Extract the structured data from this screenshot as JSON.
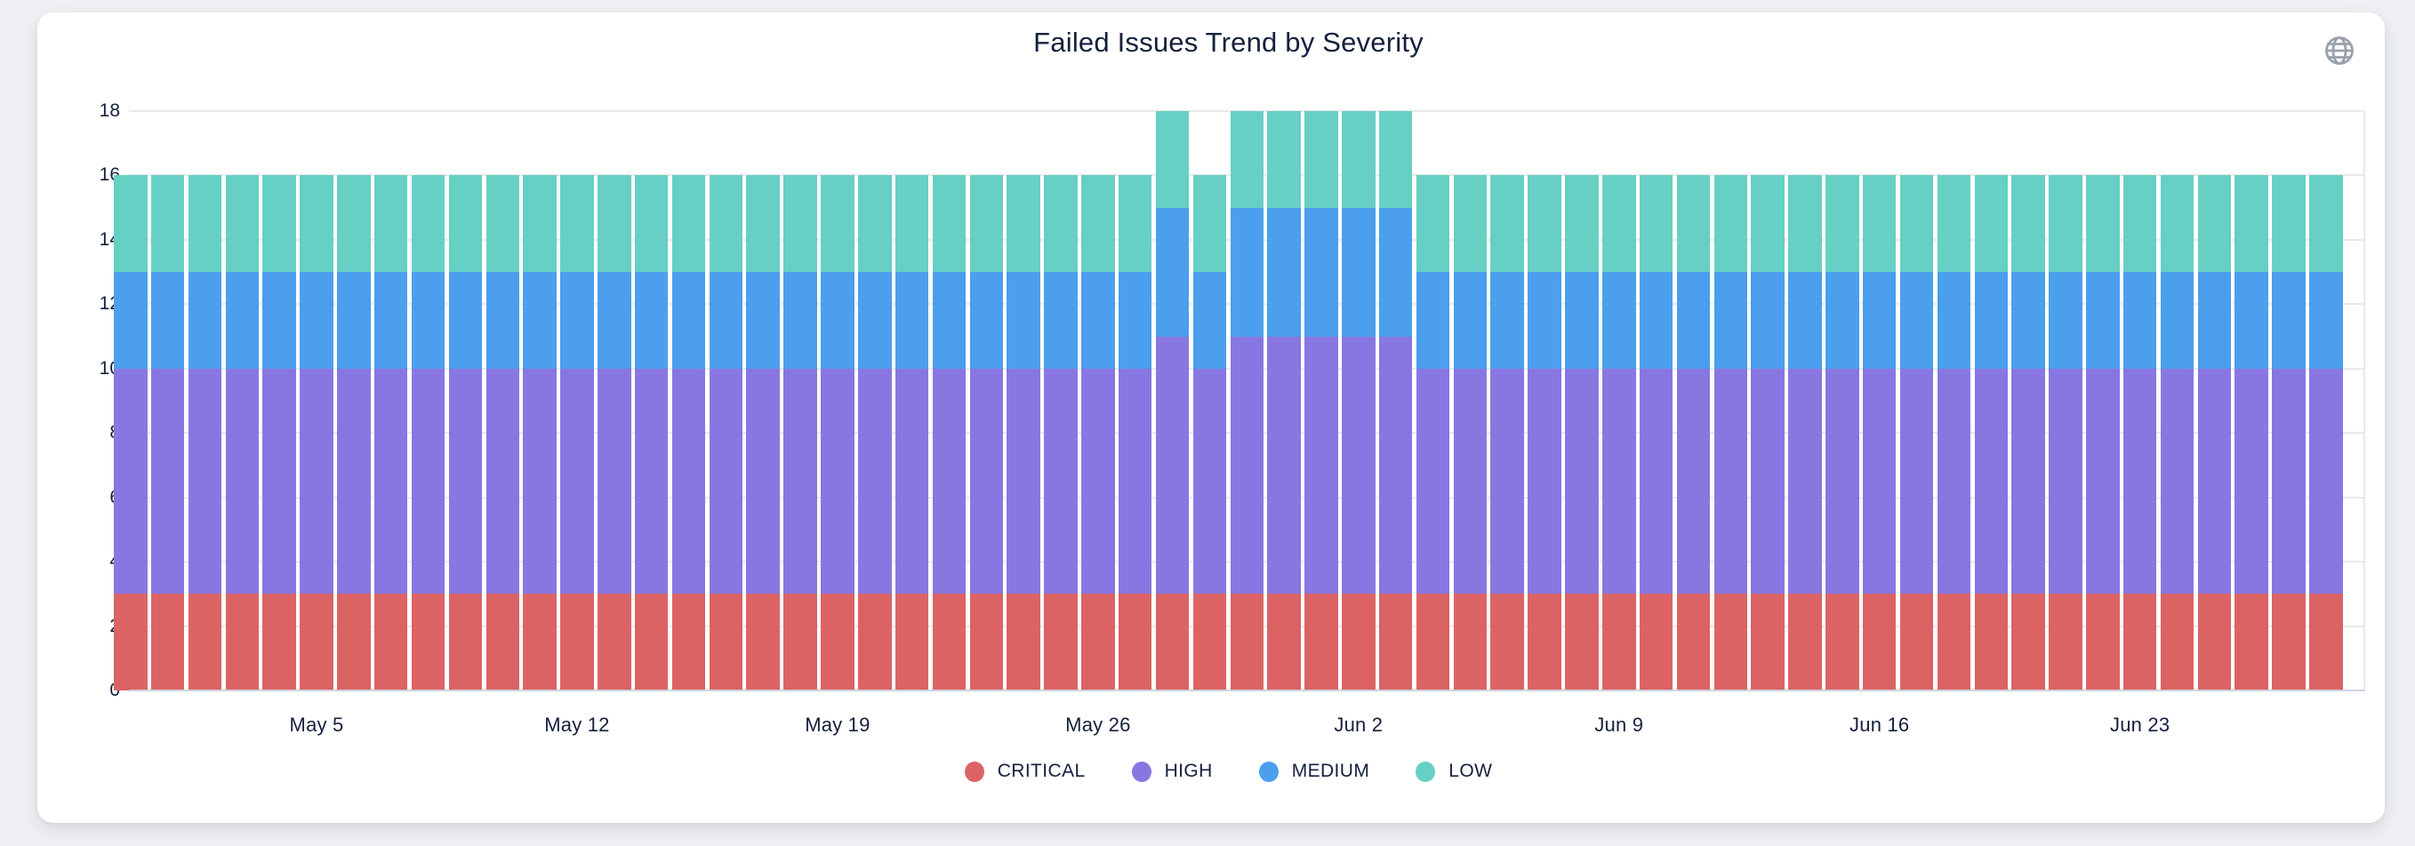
{
  "page": {
    "background_color": "#eef0f3",
    "card_color": "#ffffff"
  },
  "header": {
    "title": "Failed Issues Trend by Severity"
  },
  "toolbar": {
    "globe_icon": "globe-icon",
    "globe_color": "#9aa1ab"
  },
  "axis_style": {
    "text_color": "#14203c",
    "gridline_color": "#e9e9e9",
    "baseline_color": "#ccd3dd"
  },
  "legend": {
    "items": [
      {
        "label": "CRITICAL",
        "color": "#dc6364"
      },
      {
        "label": "HIGH",
        "color": "#8877e1"
      },
      {
        "label": "MEDIUM",
        "color": "#4b9fed"
      },
      {
        "label": "LOW",
        "color": "#66d0c4"
      }
    ]
  },
  "chart_data": {
    "type": "bar",
    "stacked": true,
    "title": "Failed Issues Trend by Severity",
    "xlabel": "",
    "ylabel": "",
    "ylim": [
      0,
      18
    ],
    "yticks": [
      0,
      2,
      4,
      6,
      8,
      10,
      12,
      14,
      16,
      18
    ],
    "grid": true,
    "legend_position": "bottom",
    "x": [
      "Apr 30",
      "May 1",
      "May 2",
      "May 3",
      "May 4",
      "May 5",
      "May 6",
      "May 7",
      "May 8",
      "May 9",
      "May 10",
      "May 11",
      "May 12",
      "May 13",
      "May 14",
      "May 15",
      "May 16",
      "May 17",
      "May 18",
      "May 19",
      "May 20",
      "May 21",
      "May 22",
      "May 23",
      "May 24",
      "May 25",
      "May 26",
      "May 27",
      "May 28",
      "May 29",
      "May 30",
      "May 31",
      "Jun 1",
      "Jun 2",
      "Jun 3",
      "Jun 4",
      "Jun 5",
      "Jun 6",
      "Jun 7",
      "Jun 8",
      "Jun 9",
      "Jun 10",
      "Jun 11",
      "Jun 12",
      "Jun 13",
      "Jun 14",
      "Jun 15",
      "Jun 16",
      "Jun 17",
      "Jun 18",
      "Jun 19",
      "Jun 20",
      "Jun 21",
      "Jun 22",
      "Jun 23",
      "Jun 24",
      "Jun 25",
      "Jun 26",
      "Jun 27",
      "Jun 28"
    ],
    "visible_tick_labels": [
      "May 5",
      "May 12",
      "May 19",
      "May 26",
      "Jun 2",
      "Jun 9",
      "Jun 16",
      "Jun 23"
    ],
    "tick_indices": [
      5,
      12,
      19,
      26,
      33,
      40,
      47,
      54
    ],
    "series": [
      {
        "name": "CRITICAL",
        "color": "#dc6364",
        "values": [
          3,
          3,
          3,
          3,
          3,
          3,
          3,
          3,
          3,
          3,
          3,
          3,
          3,
          3,
          3,
          3,
          3,
          3,
          3,
          3,
          3,
          3,
          3,
          3,
          3,
          3,
          3,
          3,
          3,
          3,
          3,
          3,
          3,
          3,
          3,
          3,
          3,
          3,
          3,
          3,
          3,
          3,
          3,
          3,
          3,
          3,
          3,
          3,
          3,
          3,
          3,
          3,
          3,
          3,
          3,
          3,
          3,
          3,
          3,
          3
        ]
      },
      {
        "name": "HIGH",
        "color": "#8877e1",
        "values": [
          7,
          7,
          7,
          7,
          7,
          7,
          7,
          7,
          7,
          7,
          7,
          7,
          7,
          7,
          7,
          7,
          7,
          7,
          7,
          7,
          7,
          7,
          7,
          7,
          7,
          7,
          7,
          7,
          8,
          7,
          8,
          8,
          8,
          8,
          8,
          7,
          7,
          7,
          7,
          7,
          7,
          7,
          7,
          7,
          7,
          7,
          7,
          7,
          7,
          7,
          7,
          7,
          7,
          7,
          7,
          7,
          7,
          7,
          7,
          7
        ]
      },
      {
        "name": "MEDIUM",
        "color": "#4b9fed",
        "values": [
          3,
          3,
          3,
          3,
          3,
          3,
          3,
          3,
          3,
          3,
          3,
          3,
          3,
          3,
          3,
          3,
          3,
          3,
          3,
          3,
          3,
          3,
          3,
          3,
          3,
          3,
          3,
          3,
          4,
          3,
          4,
          4,
          4,
          4,
          4,
          3,
          3,
          3,
          3,
          3,
          3,
          3,
          3,
          3,
          3,
          3,
          3,
          3,
          3,
          3,
          3,
          3,
          3,
          3,
          3,
          3,
          3,
          3,
          3,
          3
        ]
      },
      {
        "name": "LOW",
        "color": "#66d0c4",
        "values": [
          3,
          3,
          3,
          3,
          3,
          3,
          3,
          3,
          3,
          3,
          3,
          3,
          3,
          3,
          3,
          3,
          3,
          3,
          3,
          3,
          3,
          3,
          3,
          3,
          3,
          3,
          3,
          3,
          3,
          3,
          3,
          3,
          3,
          3,
          3,
          3,
          3,
          3,
          3,
          3,
          3,
          3,
          3,
          3,
          3,
          3,
          3,
          3,
          3,
          3,
          3,
          3,
          3,
          3,
          3,
          3,
          3,
          3,
          3,
          3
        ]
      }
    ]
  }
}
